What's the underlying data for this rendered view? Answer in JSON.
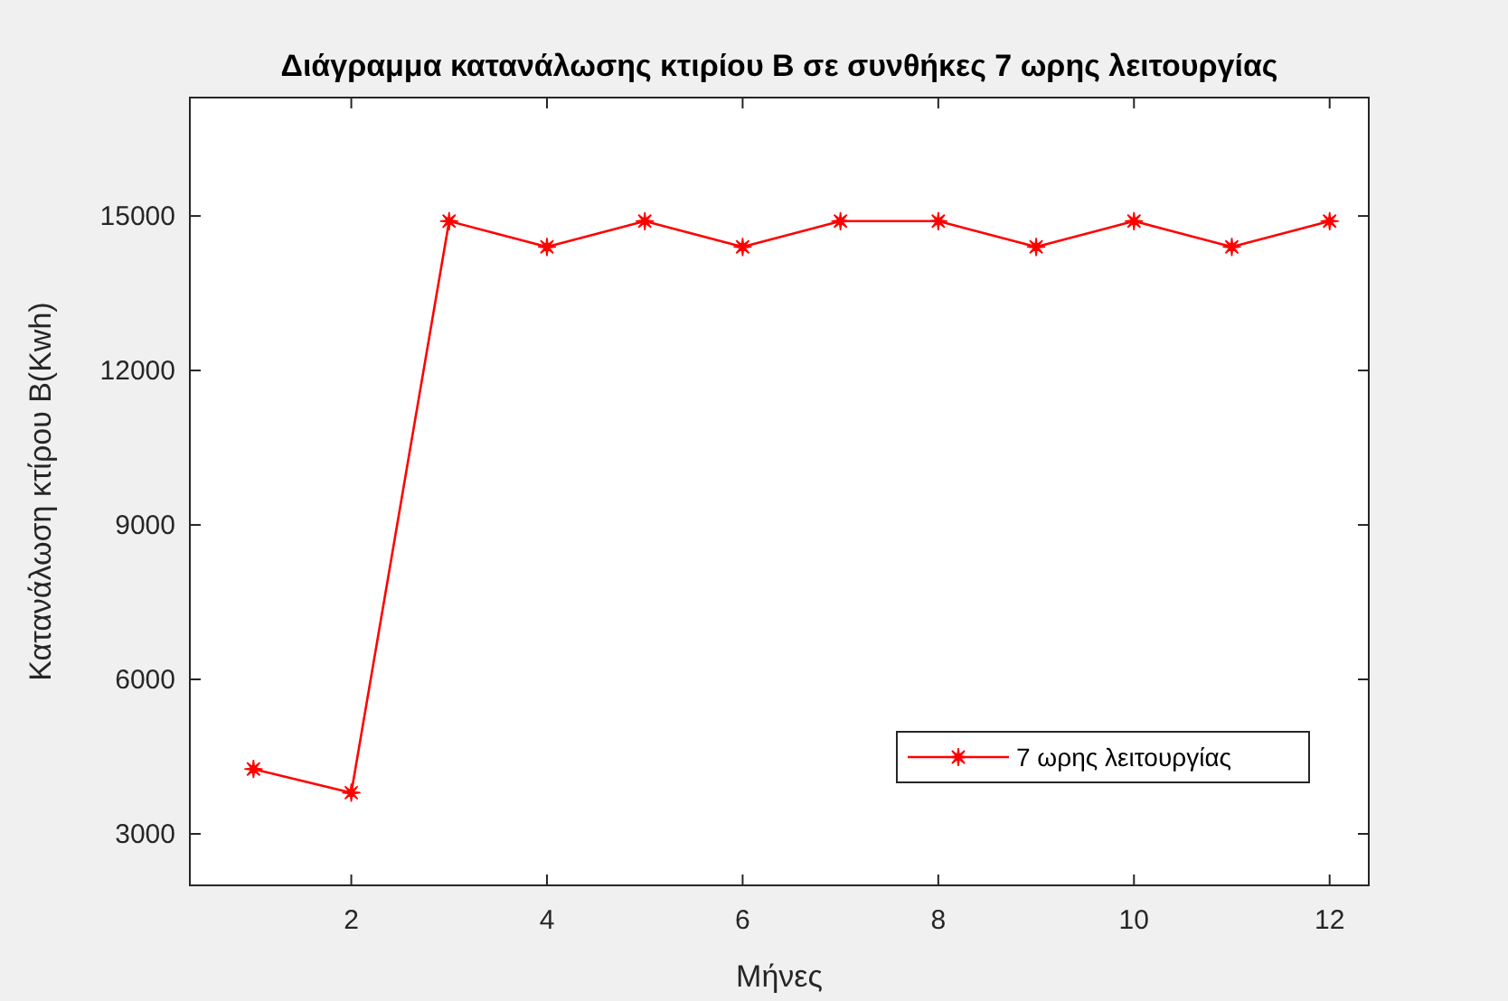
{
  "chart_data": {
    "type": "line",
    "title": "Διάγραμμα κατανάλωσης κτιρίου B σε συνθήκες 7 ωρης λειτουργίας",
    "xlabel": "Μήνες",
    "ylabel": "Κατανάλωση κτίρου B(Kwh)",
    "x": [
      1,
      2,
      3,
      4,
      5,
      6,
      7,
      8,
      9,
      10,
      11,
      12
    ],
    "series": [
      {
        "name": "7 ωρης λειτουργίας",
        "color": "#ff0000",
        "values": [
          4260,
          3800,
          14900,
          14400,
          14900,
          14400,
          14900,
          14900,
          14400,
          14900,
          14400,
          14900
        ]
      }
    ],
    "xlim": [
      0.35,
      12.4
    ],
    "xticks": [
      2,
      4,
      6,
      8,
      10,
      12
    ],
    "ylim": [
      2000,
      17300
    ],
    "yticks": [
      3000,
      6000,
      9000,
      12000,
      15000
    ],
    "grid": false,
    "legend": "bottom right",
    "marker": "star",
    "line_style": "solid"
  }
}
